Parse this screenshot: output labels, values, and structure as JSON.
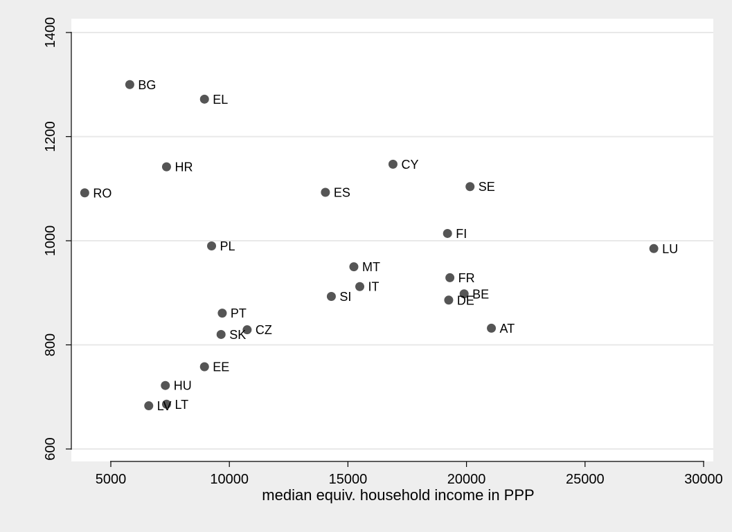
{
  "chart_data": {
    "type": "scatter",
    "title": "",
    "xlabel": "median equiv. household income in PPP",
    "ylabel": "",
    "xlim": [
      3500,
      30500
    ],
    "ylim": [
      580,
      1410
    ],
    "x_ticks": [
      5000,
      10000,
      15000,
      20000,
      25000,
      30000
    ],
    "y_ticks": [
      600,
      800,
      1000,
      1200,
      1400
    ],
    "grid": "horizontal",
    "legend": "none",
    "colors": {
      "background": "#eeeeee",
      "plot_area": "#ffffff",
      "marker": "#555555",
      "grid": "#e8e8e8",
      "axis": "#000000"
    },
    "points": [
      {
        "label": "BG",
        "x": 5800,
        "y": 1300
      },
      {
        "label": "EL",
        "x": 8950,
        "y": 1272
      },
      {
        "label": "HR",
        "x": 7350,
        "y": 1142
      },
      {
        "label": "RO",
        "x": 3900,
        "y": 1092
      },
      {
        "label": "ES",
        "x": 14050,
        "y": 1093
      },
      {
        "label": "CY",
        "x": 16900,
        "y": 1147
      },
      {
        "label": "SE",
        "x": 20150,
        "y": 1104
      },
      {
        "label": "FI",
        "x": 19200,
        "y": 1014
      },
      {
        "label": "LU",
        "x": 27900,
        "y": 985
      },
      {
        "label": "PL",
        "x": 9250,
        "y": 990
      },
      {
        "label": "MT",
        "x": 15250,
        "y": 950
      },
      {
        "label": "IT",
        "x": 15500,
        "y": 912
      },
      {
        "label": "SI",
        "x": 14300,
        "y": 893
      },
      {
        "label": "FR",
        "x": 19300,
        "y": 929
      },
      {
        "label": "BE",
        "x": 19900,
        "y": 898
      },
      {
        "label": "DE",
        "x": 19250,
        "y": 886
      },
      {
        "label": "AT",
        "x": 21050,
        "y": 832
      },
      {
        "label": "PT",
        "x": 9700,
        "y": 861
      },
      {
        "label": "CZ",
        "x": 10750,
        "y": 829
      },
      {
        "label": "SK",
        "x": 9650,
        "y": 820
      },
      {
        "label": "EE",
        "x": 8950,
        "y": 758
      },
      {
        "label": "HU",
        "x": 7300,
        "y": 722
      },
      {
        "label": "LT",
        "x": 7350,
        "y": 686
      },
      {
        "label": "LV",
        "x": 6600,
        "y": 683
      }
    ]
  }
}
